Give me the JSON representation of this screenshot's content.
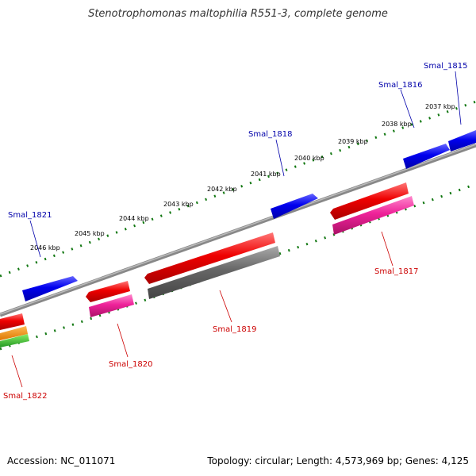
{
  "title": "Stenotrophomonas maltophilia R551-3, complete genome",
  "footer": {
    "accession": "Accession: NC_011071",
    "topology": "Topology: circular; Length: 4,573,969 bp; Genes: 4,125"
  },
  "colors": {
    "forward_gene": "#0000ee",
    "reverse_gene": "#ee0000",
    "pink_feature": "#ee2299",
    "grey_feature": "#666666",
    "backbone": "#888888",
    "ticks": "#117711",
    "forward_label": "#0000aa",
    "reverse_label": "#cc0000"
  },
  "kbp_labels": [
    "2037 kbp",
    "2038 kbp",
    "2039 kbp",
    "2040 kbp",
    "2041 kbp",
    "2042 kbp",
    "2043 kbp",
    "2044 kbp",
    "2045 kbp",
    "2046 kbp"
  ],
  "forward_genes": [
    "Smal_1815",
    "Smal_1816",
    "Smal_1818",
    "Smal_1821"
  ],
  "reverse_genes": [
    "Smal_1817",
    "Smal_1819",
    "Smal_1820",
    "Smal_1822"
  ]
}
